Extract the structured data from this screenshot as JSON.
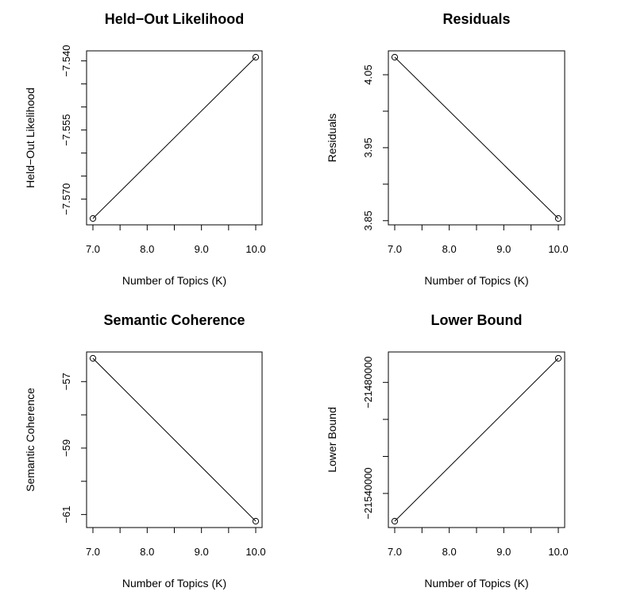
{
  "chart_data": [
    {
      "type": "line",
      "title": "Held−Out Likelihood",
      "xlabel": "Number of Topics (K)",
      "ylabel": "Held−Out Likelihood",
      "x": [
        7,
        10
      ],
      "values": [
        -7.5742,
        -7.5392
      ],
      "xlim": [
        7,
        10
      ],
      "ylim": [
        -7.5742,
        -7.5392
      ],
      "xticks": [
        7,
        7.5,
        8,
        8.5,
        9,
        9.5,
        10
      ],
      "xtick_labels": [
        "7.0",
        "",
        "8.0",
        "",
        "9.0",
        "",
        "10.0"
      ],
      "yticks": [
        -7.57,
        -7.565,
        -7.56,
        -7.555,
        -7.55,
        -7.545,
        -7.54
      ],
      "ytick_labels": [
        "−7.570",
        "",
        "",
        "−7.555",
        "",
        "",
        "−7.540"
      ]
    },
    {
      "type": "line",
      "title": "Residuals",
      "xlabel": "Number of Topics (K)",
      "ylabel": "Residuals",
      "x": [
        7,
        10
      ],
      "values": [
        4.074,
        3.853
      ],
      "xlim": [
        7,
        10
      ],
      "ylim": [
        3.853,
        4.074
      ],
      "xticks": [
        7,
        7.5,
        8,
        8.5,
        9,
        9.5,
        10
      ],
      "xtick_labels": [
        "7.0",
        "",
        "8.0",
        "",
        "9.0",
        "",
        "10.0"
      ],
      "yticks": [
        3.85,
        3.9,
        3.95,
        4.0,
        4.05
      ],
      "ytick_labels": [
        "3.85",
        "",
        "3.95",
        "",
        "4.05"
      ]
    },
    {
      "type": "line",
      "title": "Semantic Coherence",
      "xlabel": "Number of Topics (K)",
      "ylabel": "Semantic Coherence",
      "x": [
        7,
        10
      ],
      "values": [
        -56.3,
        -61.2
      ],
      "xlim": [
        7,
        10
      ],
      "ylim": [
        -61.2,
        -56.3
      ],
      "xticks": [
        7,
        7.5,
        8,
        8.5,
        9,
        9.5,
        10
      ],
      "xtick_labels": [
        "7.0",
        "",
        "8.0",
        "",
        "9.0",
        "",
        "10.0"
      ],
      "yticks": [
        -61,
        -60,
        -59,
        -58,
        -57
      ],
      "ytick_labels": [
        "−61",
        "",
        "−59",
        "",
        "−57"
      ]
    },
    {
      "type": "line",
      "title": "Lower Bound",
      "xlabel": "Number of Topics (K)",
      "ylabel": "Lower Bound",
      "x": [
        7,
        10
      ],
      "values": [
        -21555000,
        -21467000
      ],
      "xlim": [
        7,
        10
      ],
      "ylim": [
        -21555000,
        -21467000
      ],
      "xticks": [
        7,
        7.5,
        8,
        8.5,
        9,
        9.5,
        10
      ],
      "xtick_labels": [
        "7.0",
        "",
        "8.0",
        "",
        "9.0",
        "",
        "10.0"
      ],
      "yticks": [
        -21540000,
        -21520000,
        -21500000,
        -21480000
      ],
      "ytick_labels": [
        "−21540000",
        "",
        "",
        "−21480000"
      ]
    }
  ]
}
